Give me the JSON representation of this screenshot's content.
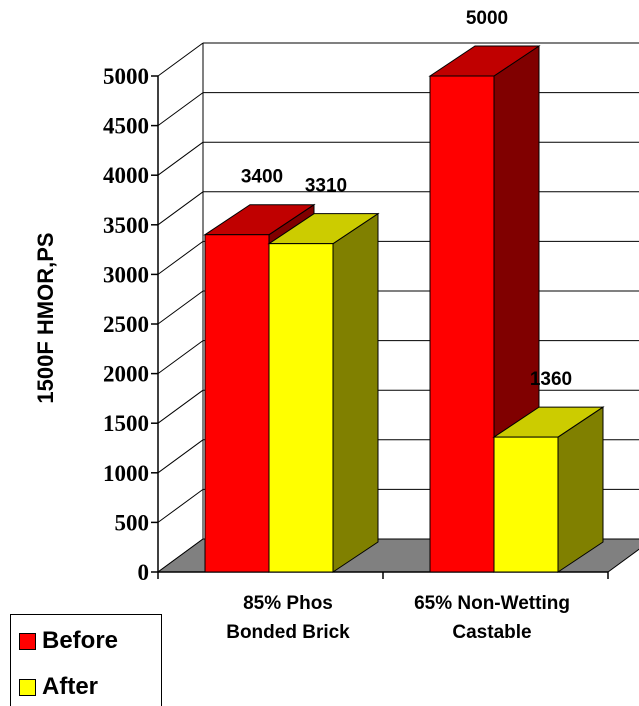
{
  "chart_data": {
    "type": "bar",
    "style": "3d-clustered",
    "categories": [
      [
        "85% Phos",
        "Bonded Brick"
      ],
      [
        "65% Non-Wetting",
        "Castable"
      ]
    ],
    "series": [
      {
        "name": "Before",
        "values": [
          3400,
          5000
        ],
        "color": "#ff0000",
        "top_color": "#c00000",
        "side_color": "#800000"
      },
      {
        "name": "After",
        "values": [
          3310,
          1360
        ],
        "color": "#ffff00",
        "top_color": "#cccc00",
        "side_color": "#808000"
      }
    ],
    "data_labels": [
      [
        "3400",
        "3310"
      ],
      [
        "5000",
        "1360"
      ]
    ],
    "ylabel": "1500F HMOR,PS",
    "ylim": [
      0,
      5000
    ],
    "yticks": [
      0,
      500,
      1000,
      1500,
      2000,
      2500,
      3000,
      3500,
      4000,
      4500,
      5000
    ],
    "grid": true,
    "floor_color": "#808080",
    "legend_position": "bottom-left"
  }
}
